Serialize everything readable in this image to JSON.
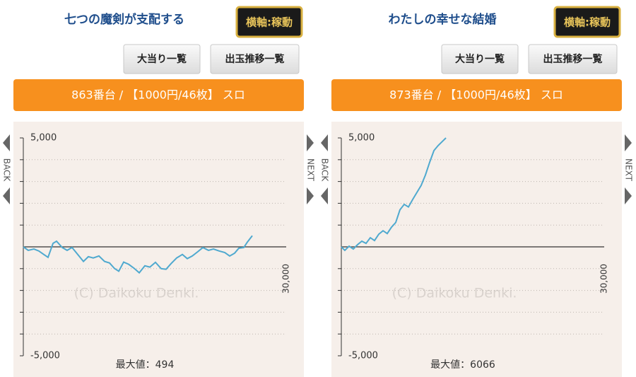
{
  "chart_data": [
    {
      "type": "line",
      "title": "七つの魔剣が支配する",
      "toggle": "横軸:稼動",
      "buttons": [
        "大当り一覧",
        "出玉推移一覧"
      ],
      "banner": "863番台 / 【1000円/46枚】 スロ",
      "back": "BACK",
      "next": "NEXT",
      "watermark": "(C) Daikoku Denki.",
      "max_label": "最大値：494",
      "color": "#4fa9cf",
      "x": [
        0,
        560,
        1210,
        1770,
        2340,
        2820,
        3390,
        3790,
        4440,
        5000,
        5560,
        6210,
        6860,
        7420,
        7980,
        8630,
        9270,
        9840,
        10400,
        10890,
        11450,
        12020,
        12660,
        13230,
        13870,
        14440,
        15080,
        15730,
        16290,
        16860,
        17500,
        18150,
        18710,
        19280,
        19920,
        20490,
        21130,
        21700,
        22340,
        22990,
        23550,
        24110,
        24600,
        25160,
        25570,
        26130
      ],
      "values": [
        0,
        -160,
        -100,
        -190,
        -350,
        -480,
        160,
        260,
        -30,
        -160,
        -30,
        -350,
        -670,
        -450,
        -510,
        -420,
        -670,
        -740,
        -990,
        -1120,
        -700,
        -800,
        -990,
        -1190,
        -870,
        -930,
        -710,
        -1000,
        -1030,
        -770,
        -510,
        -350,
        -540,
        -420,
        -220,
        -30,
        -160,
        -100,
        -190,
        -260,
        -420,
        -290,
        -60,
        -30,
        220,
        510
      ],
      "xlim": [
        0,
        30000
      ],
      "xticks": [
        {
          "value": 30000,
          "label": "30,000"
        }
      ],
      "ylim": [
        -5000,
        5000
      ],
      "yticks": [
        {
          "value": 5000,
          "label": "5,000"
        },
        {
          "value": -5000,
          "label": "-5,000"
        }
      ],
      "minor_yticks": [
        4000,
        3000,
        2000,
        1000,
        -1000,
        -2000,
        -3000,
        -4000
      ],
      "grid": true
    },
    {
      "type": "line",
      "title": "わたしの幸せな結婚",
      "toggle": "横軸:稼動",
      "buttons": [
        "大当り一覧",
        "出玉推移一覧"
      ],
      "banner": "873番台 / 【1000円/46枚】 スロ",
      "back": "BACK",
      "next": "NEXT",
      "watermark": "(C) Daikoku Denki.",
      "max_label": "最大値：6066",
      "color": "#4fa9cf",
      "x": [
        0,
        400,
        890,
        1370,
        1850,
        2340,
        2820,
        3310,
        3790,
        4270,
        4760,
        5240,
        5720,
        6210,
        6690,
        7180,
        7660,
        8150,
        8630,
        9110,
        9600,
        10080,
        10570,
        11050,
        11530,
        11940
      ],
      "values": [
        0,
        -160,
        30,
        -100,
        100,
        260,
        160,
        420,
        290,
        580,
        740,
        610,
        900,
        1120,
        1700,
        1950,
        1830,
        2180,
        2500,
        2820,
        3300,
        3880,
        4420,
        4650,
        4840,
        5000
      ],
      "xlim": [
        0,
        30000
      ],
      "xticks": [
        {
          "value": 30000,
          "label": "30,000"
        }
      ],
      "ylim": [
        -5000,
        5000
      ],
      "yticks": [
        {
          "value": 5000,
          "label": "5,000"
        },
        {
          "value": -5000,
          "label": "-5,000"
        }
      ],
      "minor_yticks": [
        4000,
        3000,
        2000,
        1000,
        -1000,
        -2000,
        -3000,
        -4000
      ],
      "grid": true
    }
  ]
}
